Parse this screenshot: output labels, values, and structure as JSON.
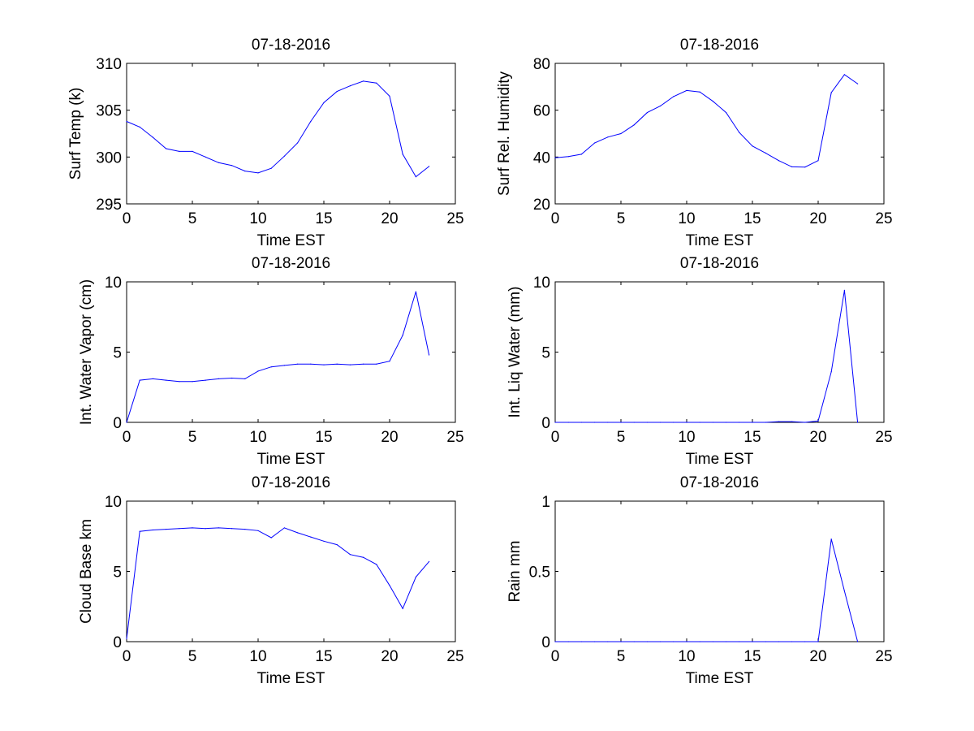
{
  "colors": {
    "background": "#ffffff",
    "axis": "#000000",
    "line": "#0000ff"
  },
  "chart_data": [
    {
      "type": "line",
      "title": "07-18-2016",
      "xlabel": "Time EST",
      "ylabel": "Surf Temp (k)",
      "xlim": [
        0,
        25
      ],
      "ylim": [
        295,
        310
      ],
      "xticks": [
        0,
        5,
        10,
        15,
        20,
        25
      ],
      "yticks": [
        295,
        300,
        305,
        310
      ],
      "x": [
        0,
        1,
        2,
        3,
        4,
        5,
        6,
        7,
        8,
        9,
        10,
        11,
        12,
        13,
        14,
        15,
        16,
        17,
        18,
        19,
        20,
        21,
        22,
        23
      ],
      "values": [
        303.8,
        303.2,
        302.1,
        300.9,
        300.6,
        300.6,
        300.0,
        299.4,
        299.1,
        298.5,
        298.3,
        298.8,
        300.1,
        301.5,
        303.8,
        305.8,
        307.0,
        307.6,
        308.1,
        307.9,
        306.5,
        300.3,
        297.9,
        299.0
      ],
      "grid": false
    },
    {
      "type": "line",
      "title": "07-18-2016",
      "xlabel": "Time EST",
      "ylabel": "Surf Rel. Humidity",
      "xlim": [
        0,
        25
      ],
      "ylim": [
        20,
        80
      ],
      "xticks": [
        0,
        5,
        10,
        15,
        20,
        25
      ],
      "yticks": [
        20,
        40,
        60,
        80
      ],
      "x": [
        0,
        1,
        2,
        3,
        4,
        5,
        6,
        7,
        8,
        9,
        10,
        11,
        12,
        13,
        14,
        15,
        16,
        17,
        18,
        19,
        20,
        21,
        22,
        23
      ],
      "values": [
        39.7,
        40.2,
        41.2,
        46.0,
        48.5,
        50.0,
        53.7,
        59.0,
        61.8,
        65.8,
        68.4,
        67.8,
        63.8,
        59.0,
        50.5,
        44.7,
        41.7,
        38.5,
        35.8,
        35.7,
        38.5,
        67.5,
        75.2,
        71.3
      ],
      "grid": false
    },
    {
      "type": "line",
      "title": "07-18-2016",
      "xlabel": "Time EST",
      "ylabel": "Int. Water Vapor (cm)",
      "xlim": [
        0,
        25
      ],
      "ylim": [
        0,
        10
      ],
      "xticks": [
        0,
        5,
        10,
        15,
        20,
        25
      ],
      "yticks": [
        0,
        5,
        10
      ],
      "x": [
        0,
        1,
        2,
        3,
        4,
        5,
        6,
        7,
        8,
        9,
        10,
        11,
        12,
        13,
        14,
        15,
        16,
        17,
        18,
        19,
        20,
        21,
        22,
        23
      ],
      "values": [
        0.0,
        3.0,
        3.1,
        3.0,
        2.9,
        2.9,
        3.0,
        3.1,
        3.15,
        3.1,
        3.65,
        3.95,
        4.05,
        4.15,
        4.15,
        4.1,
        4.15,
        4.1,
        4.15,
        4.15,
        4.35,
        6.2,
        9.3,
        4.8
      ],
      "grid": false
    },
    {
      "type": "line",
      "title": "07-18-2016",
      "xlabel": "Time EST",
      "ylabel": "Int. Liq Water (mm)",
      "xlim": [
        0,
        25
      ],
      "ylim": [
        0,
        10
      ],
      "xticks": [
        0,
        5,
        10,
        15,
        20,
        25
      ],
      "yticks": [
        0,
        5,
        10
      ],
      "x": [
        0,
        1,
        2,
        3,
        4,
        5,
        6,
        7,
        8,
        9,
        10,
        11,
        12,
        13,
        14,
        15,
        16,
        17,
        18,
        19,
        20,
        21,
        22,
        23
      ],
      "values": [
        0,
        0,
        0,
        0,
        0,
        0,
        0,
        0,
        0,
        0,
        0,
        0,
        0,
        0,
        0,
        0,
        0,
        0.05,
        0.05,
        0,
        0.1,
        3.6,
        9.4,
        0
      ],
      "grid": false
    },
    {
      "type": "line",
      "title": "07-18-2016",
      "xlabel": "Time EST",
      "ylabel": "Cloud Base km",
      "xlim": [
        0,
        25
      ],
      "ylim": [
        0,
        10
      ],
      "xticks": [
        0,
        5,
        10,
        15,
        20,
        25
      ],
      "yticks": [
        0,
        5,
        10
      ],
      "x": [
        0,
        1,
        2,
        3,
        4,
        5,
        6,
        7,
        8,
        9,
        10,
        11,
        12,
        13,
        14,
        15,
        16,
        17,
        18,
        19,
        20,
        21,
        22,
        23
      ],
      "values": [
        0.2,
        7.85,
        7.95,
        8.0,
        8.05,
        8.1,
        8.05,
        8.1,
        8.05,
        8.0,
        7.9,
        7.4,
        8.1,
        7.75,
        7.45,
        7.15,
        6.9,
        6.2,
        6.0,
        5.5,
        4.0,
        2.35,
        4.6,
        5.7
      ],
      "grid": false
    },
    {
      "type": "line",
      "title": "07-18-2016",
      "xlabel": "Time EST",
      "ylabel": "Rain mm",
      "xlim": [
        0,
        25
      ],
      "ylim": [
        0,
        1
      ],
      "xticks": [
        0,
        5,
        10,
        15,
        20,
        25
      ],
      "yticks": [
        0,
        0.5,
        1
      ],
      "x": [
        0,
        1,
        2,
        3,
        4,
        5,
        6,
        7,
        8,
        9,
        10,
        11,
        12,
        13,
        14,
        15,
        16,
        17,
        18,
        19,
        20,
        21,
        22,
        23
      ],
      "values": [
        0,
        0,
        0,
        0,
        0,
        0,
        0,
        0,
        0,
        0,
        0,
        0,
        0,
        0,
        0,
        0,
        0,
        0,
        0,
        0,
        0,
        0.73,
        0.36,
        0
      ],
      "grid": false
    }
  ]
}
